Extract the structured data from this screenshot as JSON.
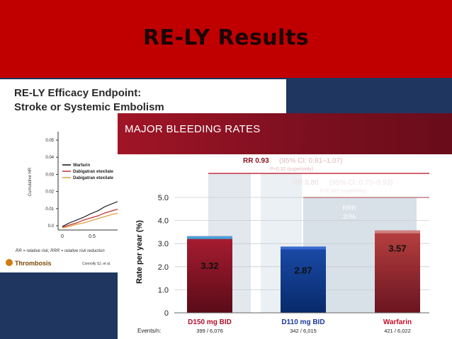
{
  "slide": {
    "title": "RE-LY  Results"
  },
  "efficacy": {
    "title_line1": "RE-LY Efficacy Endpoint:",
    "title_line2": "Stroke or Systemic Embolism",
    "y_axis_label": "Cumulative HR",
    "y_ticks": [
      "0.05",
      "0.04",
      "0.03",
      "0.02",
      "0.01",
      "0.0"
    ],
    "x_ticks": [
      "0",
      "0.5"
    ],
    "legend": [
      "Warfarin",
      "Dabigatran etexilate",
      "Dabigatran etexilate"
    ],
    "footnote": "RR = relative risk; RRR = relative risk reduction",
    "source_logo": "Thrombosis",
    "citation": "Connolly SJ, et al."
  },
  "bleeding": {
    "title": "MAJOR BLEEDING RATES",
    "rr1_main": "RR 0.93",
    "rr1_ci": "(95% CI: 0.81–1.07)",
    "rr1_p": "P=0.32 (superiority)",
    "rr2_main": "RR 0.80",
    "rr2_ci": "(95% CI: 0.70–0.93)",
    "rr2_p": "P=0.003 (superiority)",
    "rrr_label": "RRR",
    "rrr_value": "20%",
    "events_label": "Events/n:"
  },
  "chart_data": {
    "type": "bar",
    "categories": [
      "D150 mg BID",
      "D110 mg BID",
      "Warfarin"
    ],
    "values": [
      3.32,
      2.87,
      3.57
    ],
    "value_labels": [
      "3.32",
      "2.87",
      "3.57"
    ],
    "events": [
      "399 / 6,076",
      "342 / 6,015",
      "421 / 6,022"
    ],
    "ylabel": "Rate per year (%)",
    "ylim": [
      0,
      5
    ],
    "y_ticks": [
      "0",
      "1.0",
      "2.0",
      "3.0",
      "4.0",
      "5.0"
    ],
    "colors": [
      "#7a1428",
      "#0b3a8c",
      "#9a2430"
    ],
    "category_colors": [
      "#b0102a",
      "#1a3aa0",
      "#c0102a"
    ]
  }
}
